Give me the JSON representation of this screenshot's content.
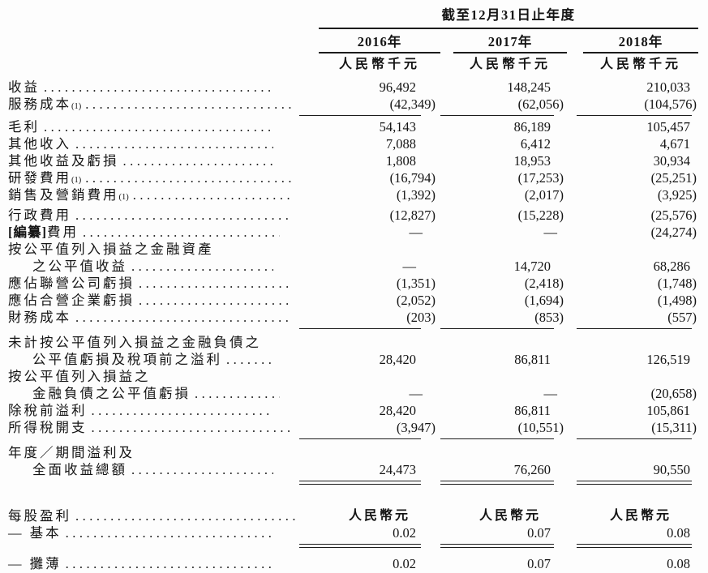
{
  "table": {
    "period_header": "截至12月31日止年度",
    "columns": [
      {
        "year": "2016年",
        "unit": "人民幣千元"
      },
      {
        "year": "2017年",
        "unit": "人民幣千元"
      },
      {
        "year": "2018年",
        "unit": "人民幣千元"
      }
    ],
    "rows": [
      {
        "label": "收益",
        "values": [
          "96,492",
          "148,245",
          "210,033"
        ]
      },
      {
        "label": "服務成本",
        "sup": "(1)",
        "values": [
          "(42,349)",
          "(62,056)",
          "(104,576)"
        ],
        "rule": "single"
      },
      {
        "label": "毛利",
        "values": [
          "54,143",
          "86,189",
          "105,457"
        ]
      },
      {
        "label": "其他收入",
        "values": [
          "7,088",
          "6,412",
          "4,671"
        ]
      },
      {
        "label": "其他收益及虧損",
        "values": [
          "1,808",
          "18,953",
          "30,934"
        ]
      },
      {
        "label": "研發費用",
        "sup": "(1)",
        "values": [
          "(16,794)",
          "(17,253)",
          "(25,251)"
        ]
      },
      {
        "label": "銷售及營銷費用",
        "sup": "(1)",
        "values": [
          "(1,392)",
          "(2,017)",
          "(3,925)"
        ]
      },
      {
        "label": "行政費用",
        "values": [
          "(12,827)",
          "(15,228)",
          "(25,576)"
        ],
        "gap": 4
      },
      {
        "prefix": "[編纂]",
        "label": "費用",
        "values": [
          "—",
          "—",
          "(24,274)"
        ]
      },
      {
        "lines": [
          "按公平值列入損益之金融資產",
          "之公平值收益"
        ],
        "values": [
          "—",
          "14,720",
          "68,286"
        ]
      },
      {
        "label": "應佔聯營公司虧損",
        "values": [
          "(1,351)",
          "(2,418)",
          "(1,748)"
        ]
      },
      {
        "label": "應佔合營企業虧損",
        "values": [
          "(2,052)",
          "(1,694)",
          "(1,498)"
        ]
      },
      {
        "label": "財務成本",
        "values": [
          "(203)",
          "(853)",
          "(557)"
        ],
        "rule": "single"
      },
      {
        "lines": [
          "未計按公平值列入損益之金融負債之",
          "公平值虧損及稅項前之溢利"
        ],
        "values": [
          "28,420",
          "86,811",
          "126,519"
        ],
        "gap": 3
      },
      {
        "lines": [
          "按公平值列入損益之",
          "金融負債之公平值虧損"
        ],
        "values": [
          "—",
          "—",
          "(20,658)"
        ]
      },
      {
        "label": "除稅前溢利",
        "values": [
          "28,420",
          "86,811",
          "105,861"
        ]
      },
      {
        "label": "所得稅開支",
        "values": [
          "(3,947)",
          "(10,551)",
          "(15,311)"
        ],
        "rule": "single"
      },
      {
        "lines": [
          "年度／期間溢利及",
          "全面收益總額"
        ],
        "values": [
          "24,473",
          "76,260",
          "90,550"
        ],
        "rule": "double",
        "gap": 3
      },
      {
        "label": "每股盈利",
        "values": [
          "人民幣元",
          "人民幣元",
          "人民幣元"
        ],
        "unit_values": true,
        "gap": 26
      },
      {
        "label": "— 基本",
        "values": [
          "0.02",
          "0.07",
          "0.08"
        ],
        "rule": "double"
      },
      {
        "label": "— 攤薄",
        "values": [
          "0.02",
          "0.07",
          "0.08"
        ],
        "rule": "double",
        "gap": 7
      }
    ]
  }
}
